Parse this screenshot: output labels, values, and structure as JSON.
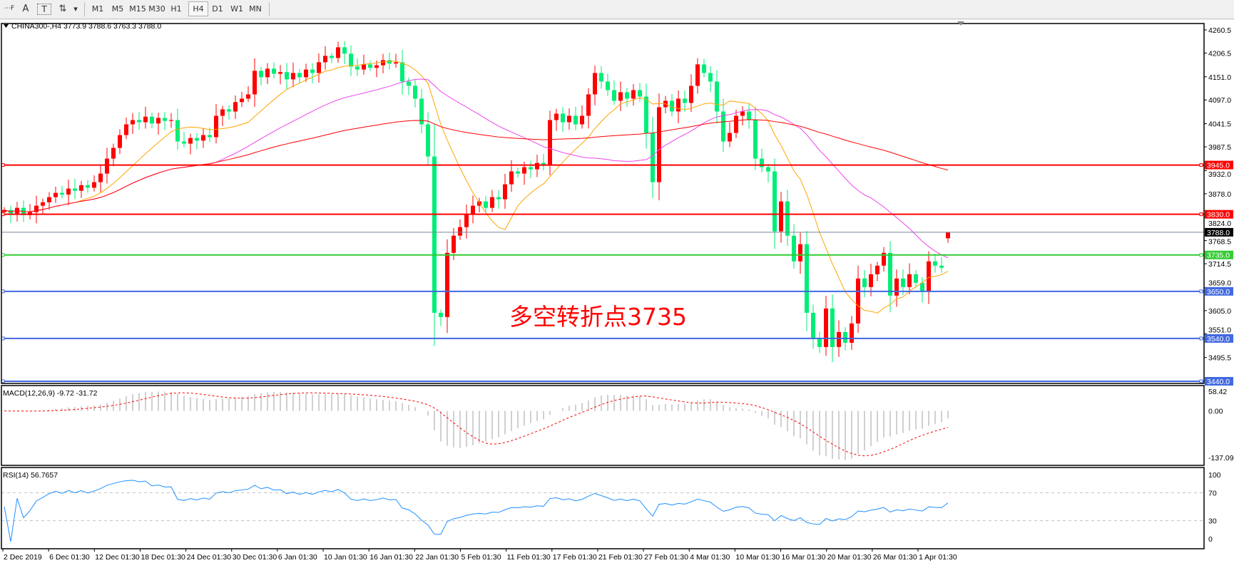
{
  "toolbar": {
    "tools": [
      {
        "name": "grid-font-icon",
        "label": "⋯F"
      },
      {
        "name": "text-icon",
        "label": "A"
      },
      {
        "name": "text-label-icon",
        "label": "T"
      },
      {
        "name": "arrows-icon",
        "label": "⇅"
      },
      {
        "name": "dropdown-icon",
        "label": "▾"
      }
    ],
    "timeframes": [
      "M1",
      "M5",
      "M15",
      "M30",
      "H1",
      "H4",
      "D1",
      "W1",
      "MN"
    ],
    "active_timeframe": "H4"
  },
  "chart": {
    "header": "CHINA300-,H4  3773.9 3788.6 3763.3 3788.0",
    "symbol": "CHINA300-",
    "timeframe": "H4",
    "last_bar": {
      "open": 3773.9,
      "high": 3788.6,
      "low": 3763.3,
      "close": 3788.0
    },
    "annotation": "多空转折点3735",
    "colors": {
      "bull": "#ff0000",
      "bear": "#00ee77",
      "ma_fast": "#ffa500",
      "ma_mid": "#ee44ee",
      "ma_slow": "#ff0000",
      "macd_hist": "#c0c0c0",
      "macd_signal": "#ff0000",
      "rsi": "#1e90ff"
    }
  },
  "chart_data": {
    "type": "candlestick",
    "y_axis_ticks": [
      "4260.5",
      "4206.5",
      "4151.0",
      "4097.0",
      "4041.5",
      "3987.5",
      "3932.0",
      "3878.0",
      "3824.0",
      "3768.5",
      "3714.5",
      "3659.0",
      "3605.0",
      "3551.0",
      "3495.5"
    ],
    "ylim": [
      3440,
      4260.5
    ],
    "x_axis_labels": [
      "2 Dec 2019",
      "6 Dec 01:30",
      "12 Dec 01:30",
      "18 Dec 01:30",
      "24 Dec 01:30",
      "30 Dec 01:30",
      "6 Jan 01:30",
      "10 Jan 01:30",
      "16 Jan 01:30",
      "22 Jan 01:30",
      "5 Feb 01:30",
      "11 Feb 01:30",
      "17 Feb 01:30",
      "21 Feb 01:30",
      "27 Feb 01:30",
      "4 Mar 01:30",
      "10 Mar 01:30",
      "16 Mar 01:30",
      "20 Mar 01:30",
      "26 Mar 01:30",
      "1 Apr 01:30"
    ],
    "close": [
      3840,
      3832,
      3845,
      3828,
      3835,
      3850,
      3858,
      3870,
      3880,
      3876,
      3890,
      3885,
      3898,
      3892,
      3905,
      3925,
      3960,
      3985,
      4015,
      4040,
      4050,
      4045,
      4058,
      4042,
      4055,
      4048,
      4050,
      4000,
      3995,
      4008,
      4002,
      4015,
      4010,
      4060,
      4075,
      4070,
      4092,
      4100,
      4110,
      4165,
      4150,
      4170,
      4158,
      4162,
      4145,
      4160,
      4150,
      4168,
      4160,
      4185,
      4200,
      4195,
      4220,
      4205,
      4175,
      4168,
      4180,
      4172,
      4178,
      4190,
      4182,
      4185,
      4140,
      4130,
      4100,
      4040,
      3965,
      3600,
      3590,
      3740,
      3780,
      3800,
      3830,
      3850,
      3860,
      3845,
      3870,
      3865,
      3900,
      3930,
      3925,
      3940,
      3935,
      3950,
      3945,
      4050,
      4065,
      4045,
      4060,
      4040,
      4060,
      4110,
      4160,
      4140,
      4120,
      4095,
      4115,
      4100,
      4120,
      4105,
      4020,
      3905,
      4080,
      4095,
      4070,
      4100,
      4090,
      4130,
      4180,
      4160,
      4140,
      4070,
      4000,
      4020,
      4060,
      4070,
      4050,
      3960,
      3940,
      3930,
      3790,
      3860,
      3780,
      3720,
      3760,
      3600,
      3540,
      3520,
      3610,
      3520,
      3555,
      3530,
      3575,
      3680,
      3660,
      3690,
      3710,
      3740,
      3640,
      3680,
      3660,
      3690,
      3670,
      3650,
      3720,
      3710,
      3705,
      3788
    ],
    "horizontal_levels": [
      {
        "price": 3945.0,
        "label": "3945.0",
        "color": "#ff0000"
      },
      {
        "price": 3830.0,
        "label": "3830.0",
        "color": "#ff0000"
      },
      {
        "price": 3788.0,
        "label": "3788.0",
        "color": "#000000",
        "line_color": "#778899"
      },
      {
        "price": 3735.0,
        "label": "3735.0",
        "color": "#33cc33"
      },
      {
        "price": 3650.0,
        "label": "3650.0",
        "color": "#4169e1"
      },
      {
        "price": 3540.0,
        "label": "3540.0",
        "color": "#4169e1"
      },
      {
        "price": 3440.0,
        "label": "3440.0",
        "color": "#4169e1"
      }
    ],
    "macd": {
      "label": "MACD(12,26,9) -9.72 -31.72",
      "ticks": [
        "58.42",
        "0.00",
        "-137.09"
      ],
      "ylim": [
        -137.09,
        58.42
      ]
    },
    "rsi": {
      "label": "RSI(14) 56.7657",
      "ticks": [
        "100",
        "70",
        "30",
        "0"
      ],
      "levels": [
        70,
        30
      ]
    }
  }
}
